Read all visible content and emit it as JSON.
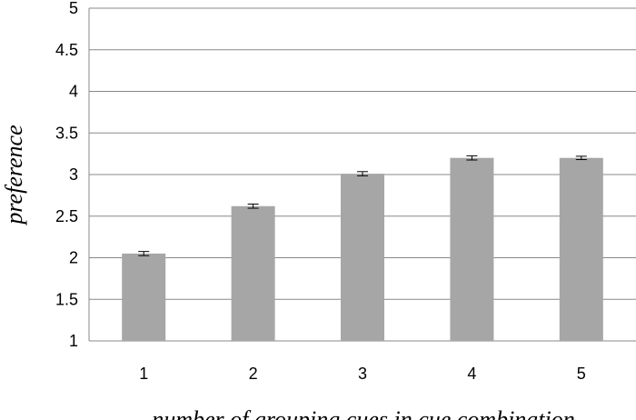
{
  "chart_data": {
    "type": "bar",
    "categories": [
      "1",
      "2",
      "3",
      "4",
      "5"
    ],
    "values": [
      2.05,
      2.62,
      3.01,
      3.2,
      3.2
    ],
    "error": [
      0.025,
      0.025,
      0.025,
      0.025,
      0.02
    ],
    "xlabel": "number of grouping cues in cue combination",
    "ylabel": "preference",
    "ylim": [
      1,
      5
    ],
    "yticks": [
      "1",
      "1.5",
      "2",
      "2.5",
      "3",
      "3.5",
      "4",
      "4.5",
      "5"
    ],
    "grid": true,
    "bar_color": "#a6a6a6",
    "grid_color": "#888888"
  }
}
